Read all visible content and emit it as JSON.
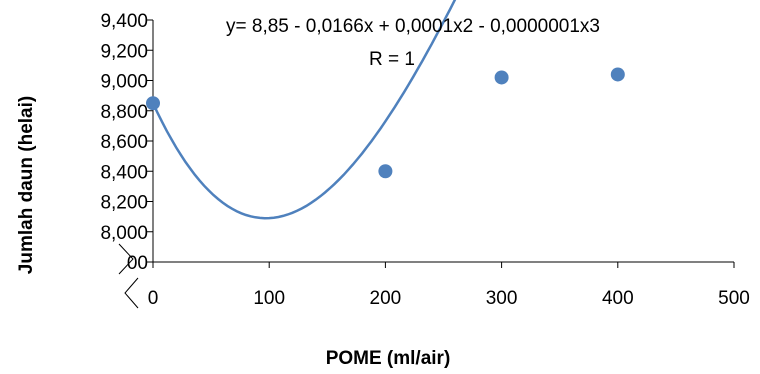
{
  "chart_data": {
    "type": "scatter",
    "x": [
      0,
      200,
      300,
      400
    ],
    "y": [
      8.85,
      8.4,
      9.02,
      9.04
    ],
    "xlim": [
      0,
      500
    ],
    "ylim": [
      7.8,
      9.4
    ],
    "xticks": [
      "0",
      "100",
      "200",
      "300",
      "400",
      "500"
    ],
    "yticks": [
      "00",
      "8,000",
      "8,200",
      "8,400",
      "8,600",
      "8,800",
      "9,000",
      "9,200",
      "9,400"
    ],
    "xlabel": "POME (ml/air)",
    "ylabel": "Jumlah daun (helai)",
    "trendline": {
      "type": "polynomial-3",
      "coefficients": [
        8.85,
        -0.0166,
        0.0001,
        -1e-07
      ],
      "equation": "y= 8,85 - 0,0166x + 0,0001x2 - 0,0000001x3",
      "r_label": "R = 1"
    },
    "grid": false,
    "legend": "none",
    "colors": {
      "series": "#4f81bd",
      "axis": "#000000"
    }
  }
}
